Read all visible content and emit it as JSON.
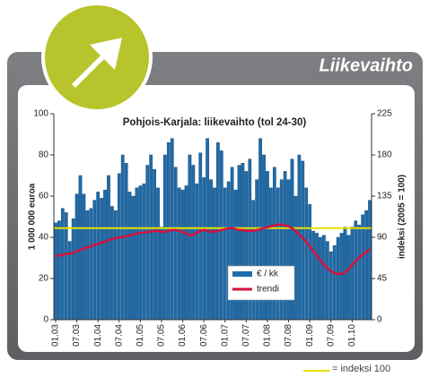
{
  "header": "Liikevaihto",
  "chart_data": {
    "type": "bar",
    "title": "Pohjois-Karjala: liikevaihto (tol 24-30)",
    "y_label": "1 000 000 euroa",
    "y2_label": "indeksi (2005 = 100)",
    "categories": [
      "01.03",
      null,
      null,
      null,
      null,
      null,
      "07.03",
      null,
      null,
      null,
      null,
      null,
      "01.04",
      null,
      null,
      null,
      null,
      null,
      "07.04",
      null,
      null,
      null,
      null,
      null,
      "01.05",
      null,
      null,
      null,
      null,
      null,
      "07.05",
      null,
      null,
      null,
      null,
      null,
      "01.06",
      null,
      null,
      null,
      null,
      null,
      "07.06",
      null,
      null,
      null,
      null,
      null,
      "01.07",
      null,
      null,
      null,
      null,
      null,
      "07.07",
      null,
      null,
      null,
      null,
      null,
      "01.08",
      null,
      null,
      null,
      null,
      null,
      "07.08",
      null,
      null,
      null,
      null,
      null,
      "01.09",
      null,
      null,
      null,
      null,
      null,
      "07.09",
      null,
      null,
      null,
      null,
      null,
      "01.10",
      null,
      null,
      null,
      null,
      null
    ],
    "series": [
      {
        "name": "€ / kk",
        "color": "#1f6cab",
        "values": [
          47,
          48,
          54,
          52,
          38,
          49,
          61,
          70,
          61,
          53,
          54,
          58,
          62,
          59,
          63,
          70,
          55,
          53,
          71,
          80,
          76,
          62,
          60,
          64,
          65,
          66,
          75,
          80,
          73,
          64,
          45,
          80,
          86,
          88,
          74,
          64,
          63,
          65,
          80,
          75,
          66,
          81,
          69,
          88,
          68,
          64,
          86,
          82,
          64,
          67,
          74,
          63,
          75,
          76,
          72,
          78,
          58,
          68,
          88,
          80,
          72,
          64,
          74,
          64,
          68,
          72,
          68,
          78,
          60,
          80,
          77,
          64,
          56,
          43,
          42,
          40,
          41,
          38,
          33,
          36,
          40,
          42,
          45,
          41,
          45,
          48,
          46,
          51,
          53,
          58
        ]
      },
      {
        "name": "trendi",
        "color": "#d4123c",
        "axis": "y2",
        "type": "line",
        "values": [
          70,
          70,
          71,
          72,
          72,
          73,
          75,
          76,
          78,
          79,
          80,
          82,
          83,
          84,
          85,
          87,
          88,
          89,
          90,
          90,
          91,
          92,
          93,
          94,
          95,
          95,
          96,
          96,
          97,
          97,
          96,
          96,
          97,
          98,
          98,
          97,
          96,
          94,
          92,
          93,
          95,
          97,
          98,
          97,
          96,
          96,
          97,
          98,
          99,
          100,
          100,
          99,
          98,
          98,
          97,
          97,
          97,
          98,
          99,
          100,
          101,
          102,
          103,
          104,
          104,
          103,
          102,
          100,
          97,
          93,
          89,
          85,
          80,
          75,
          70,
          65,
          60,
          56,
          53,
          51,
          50,
          50,
          52,
          55,
          60,
          64,
          68,
          71,
          74,
          77
        ]
      }
    ],
    "reference": {
      "value": 100,
      "axis": "y2",
      "color": "#e6e000",
      "label": "= indeksi 100"
    },
    "ylim": [
      0,
      100
    ],
    "yticks": [
      0,
      20,
      40,
      60,
      80,
      100
    ],
    "y2lim": [
      0,
      225
    ],
    "y2ticks": [
      0,
      45,
      90,
      135,
      180,
      225
    ],
    "grid": false
  }
}
